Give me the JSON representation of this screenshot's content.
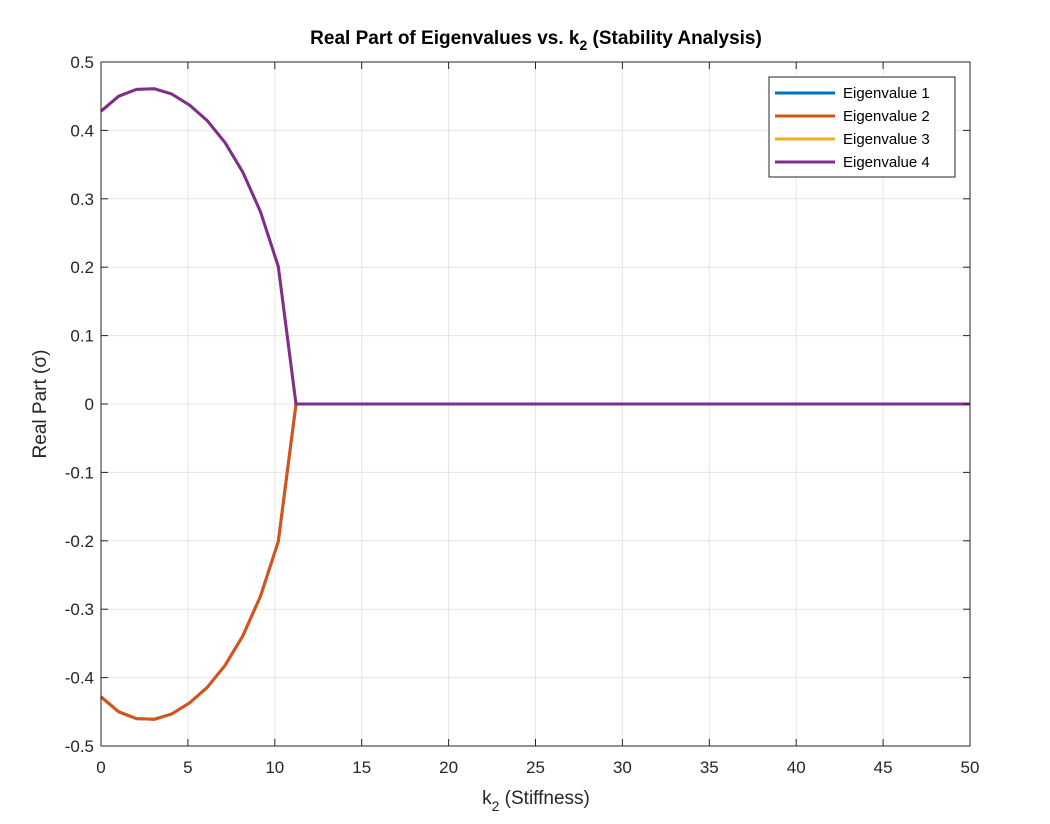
{
  "chart_data": {
    "type": "line",
    "title": {
      "prefix": "Real Part of Eigenvalues vs. k",
      "subscript": "2",
      "suffix": " (Stability Analysis)"
    },
    "xlabel": {
      "prefix": "k",
      "subscript": "2",
      "suffix": " (Stiffness)"
    },
    "ylabel": "Real Part (σ)",
    "xlim": [
      0,
      50
    ],
    "ylim": [
      -0.5,
      0.5
    ],
    "xticks": [
      0,
      5,
      10,
      15,
      20,
      25,
      30,
      35,
      40,
      45,
      50
    ],
    "yticks": [
      -0.5,
      -0.4,
      -0.3,
      -0.2,
      -0.1,
      0,
      0.1,
      0.2,
      0.3,
      0.4,
      0.5
    ],
    "xtick_labels": [
      "0",
      "5",
      "10",
      "15",
      "20",
      "25",
      "30",
      "35",
      "40",
      "45",
      "50"
    ],
    "ytick_labels": [
      "-0.5",
      "-0.4",
      "-0.3",
      "-0.2",
      "-0.1",
      "0",
      "0.1",
      "0.2",
      "0.3",
      "0.4",
      "0.5"
    ],
    "grid": true,
    "legend_position": "top-right",
    "x": [
      0,
      1.02,
      2.04,
      3.06,
      4.08,
      5.1,
      6.12,
      7.14,
      8.16,
      9.18,
      10.2,
      11.22,
      50
    ],
    "series": [
      {
        "name": "Eigenvalue 1",
        "color": "#0072BD",
        "values": [
          -0.428,
          -0.45,
          -0.46,
          -0.461,
          -0.453,
          -0.437,
          -0.414,
          -0.382,
          -0.339,
          -0.281,
          -0.201,
          0.0,
          0.0
        ]
      },
      {
        "name": "Eigenvalue 2",
        "color": "#D95319",
        "values": [
          -0.428,
          -0.45,
          -0.46,
          -0.461,
          -0.453,
          -0.437,
          -0.414,
          -0.382,
          -0.339,
          -0.281,
          -0.201,
          0.0,
          0.0
        ]
      },
      {
        "name": "Eigenvalue 3",
        "color": "#EDB120",
        "values": [
          0.428,
          0.45,
          0.46,
          0.461,
          0.453,
          0.437,
          0.414,
          0.382,
          0.339,
          0.281,
          0.201,
          0.0,
          0.0
        ]
      },
      {
        "name": "Eigenvalue 4",
        "color": "#7E2F8E",
        "values": [
          0.428,
          0.45,
          0.46,
          0.461,
          0.453,
          0.437,
          0.414,
          0.382,
          0.339,
          0.281,
          0.201,
          0.0,
          0.0
        ]
      }
    ]
  }
}
